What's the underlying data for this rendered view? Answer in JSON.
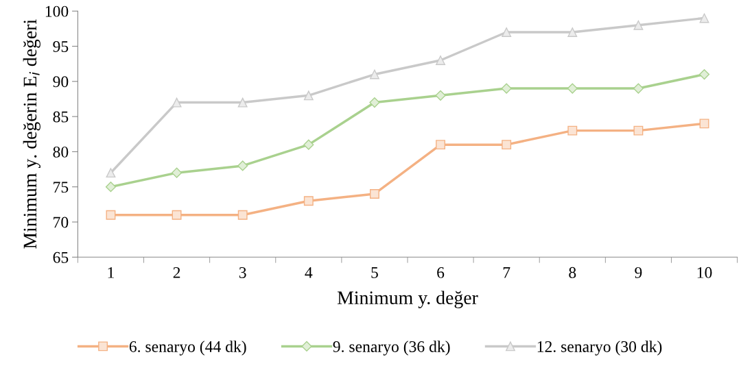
{
  "chart_data": {
    "type": "line",
    "xlabel": "Minimum y. değer",
    "ylabel": "Minimum y. değerin E$_{i}$ değeri",
    "categories": [
      "1",
      "2",
      "3",
      "4",
      "5",
      "6",
      "7",
      "8",
      "9",
      "10"
    ],
    "series": [
      {
        "name": "6. senaryo (44 dk)",
        "color": "#f4b183",
        "marker": "square",
        "values": [
          71,
          71,
          71,
          73,
          74,
          81,
          81,
          83,
          83,
          84
        ]
      },
      {
        "name": "9. senaryo (36 dk)",
        "color": "#a9d18e",
        "marker": "diamond",
        "values": [
          75,
          77,
          78,
          81,
          87,
          88,
          89,
          89,
          89,
          91
        ]
      },
      {
        "name": "12. senaryo (30 dk)",
        "color": "#c9c9c9",
        "marker": "triangle",
        "values": [
          77,
          87,
          87,
          88,
          91,
          93,
          97,
          97,
          98,
          99
        ]
      }
    ],
    "ylim": [
      65,
      100
    ],
    "yticks": [
      65,
      70,
      75,
      80,
      85,
      90,
      95,
      100
    ],
    "grid": false,
    "legend": "bottom",
    "line_style": "solid"
  }
}
